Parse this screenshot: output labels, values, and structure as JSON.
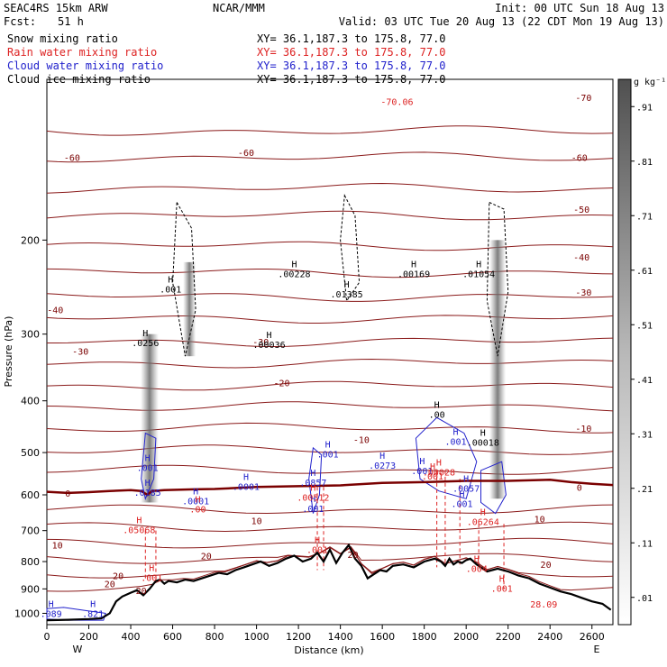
{
  "header": {
    "model": "SEAC4RS 15km ARW",
    "org": "NCAR/MMM",
    "init": "Init: 00 UTC Sun 18 Aug 13",
    "fcst_label": "Fcst:",
    "fcst_value": "51 h",
    "valid": "Valid: 03 UTC Tue 20 Aug 13 (22 CDT Mon 19 Aug 13)"
  },
  "legend": [
    {
      "name": "Snow mixing ratio",
      "xy": "XY=  36.1,187.3 to 175.8, 77.0",
      "color": "#000000"
    },
    {
      "name": "Rain water mixing ratio",
      "xy": "XY=  36.1,187.3 to 175.8, 77.0",
      "color": "#dd2222"
    },
    {
      "name": "Cloud water mixing ratio",
      "xy": "XY=  36.1,187.3 to 175.8, 77.0",
      "color": "#2222cc"
    },
    {
      "name": "Cloud ice mixing ratio",
      "xy": "XY=  36.1,187.3 to 175.8, 77.0",
      "color": "#000000"
    }
  ],
  "colorbar": {
    "unit": "g kg⁻¹",
    "ticks": [
      ".91",
      ".81",
      ".71",
      ".61",
      ".51",
      ".41",
      ".31",
      ".21",
      ".11",
      ".01"
    ]
  },
  "chart_data": {
    "type": "cross-section",
    "xlabel": "Distance (km)",
    "ylabel": "Pressure (hPa)",
    "xlim": [
      0,
      2700
    ],
    "ylim": [
      1050,
      100
    ],
    "y_log_scale": true,
    "x_ticks": [
      0,
      200,
      400,
      600,
      800,
      1000,
      1200,
      1400,
      1600,
      1800,
      2000,
      2200,
      2400,
      2600
    ],
    "y_ticks": [
      200,
      300,
      400,
      500,
      600,
      700,
      800,
      900,
      1000
    ],
    "x_end_labels": [
      "W",
      "E"
    ],
    "temperature_contours_degC": [
      -70,
      -60,
      -50,
      -40,
      -30,
      -20,
      -10,
      0,
      10,
      20
    ],
    "temperature_labels": [
      {
        "x": 120,
        "p": 140,
        "text": "-60"
      },
      {
        "x": 950,
        "p": 137,
        "text": "-60"
      },
      {
        "x": 2560,
        "p": 108,
        "text": "-70"
      },
      {
        "x": 2540,
        "p": 140,
        "text": "-60"
      },
      {
        "x": 2550,
        "p": 175,
        "text": "-50"
      },
      {
        "x": 2550,
        "p": 215,
        "text": "-40"
      },
      {
        "x": 2560,
        "p": 250,
        "text": "-30"
      },
      {
        "x": 40,
        "p": 270,
        "text": "-40"
      },
      {
        "x": 160,
        "p": 323,
        "text": "-30"
      },
      {
        "x": 1020,
        "p": 310,
        "text": "-30"
      },
      {
        "x": 1120,
        "p": 370,
        "text": "-20"
      },
      {
        "x": 2560,
        "p": 450,
        "text": "-10"
      },
      {
        "x": 1500,
        "p": 472,
        "text": "-10"
      },
      {
        "x": 100,
        "p": 595,
        "text": "0"
      },
      {
        "x": 2540,
        "p": 580,
        "text": "0"
      },
      {
        "x": 1000,
        "p": 670,
        "text": "10"
      },
      {
        "x": 2350,
        "p": 665,
        "text": "10"
      },
      {
        "x": 50,
        "p": 745,
        "text": "10"
      },
      {
        "x": 760,
        "p": 780,
        "text": "20"
      },
      {
        "x": 1460,
        "p": 775,
        "text": "20"
      },
      {
        "x": 2380,
        "p": 810,
        "text": "20"
      },
      {
        "x": 340,
        "p": 850,
        "text": "20"
      },
      {
        "x": 300,
        "p": 880,
        "text": "20"
      },
      {
        "x": 450,
        "p": 905,
        "text": "20"
      }
    ],
    "special_labels": [
      {
        "x": 1670,
        "p": 110,
        "text": "-70.06",
        "color": "#dd2222"
      },
      {
        "x": 2370,
        "p": 960,
        "text": "28.09",
        "color": "#dd2222"
      }
    ],
    "maxima": [
      {
        "x": 470,
        "p": 312,
        "label": ".0256",
        "color": "#000000"
      },
      {
        "x": 590,
        "p": 248,
        "label": ".001",
        "color": "#000000"
      },
      {
        "x": 1060,
        "p": 315,
        "label": ".00036",
        "color": "#000000"
      },
      {
        "x": 1180,
        "p": 232,
        "label": ".00228",
        "color": "#000000"
      },
      {
        "x": 1430,
        "p": 253,
        "label": ".01385",
        "color": "#000000"
      },
      {
        "x": 1750,
        "p": 232,
        "label": ".00169",
        "color": "#000000"
      },
      {
        "x": 2060,
        "p": 232,
        "label": ".01054",
        "color": "#000000"
      },
      {
        "x": 1860,
        "p": 425,
        "label": ".00",
        "color": "#000000"
      },
      {
        "x": 2080,
        "p": 480,
        "label": ".00018",
        "color": "#000000"
      },
      {
        "x": 480,
        "p": 535,
        "label": ".001",
        "color": "#2222cc"
      },
      {
        "x": 480,
        "p": 595,
        "label": ".0185",
        "color": "#2222cc"
      },
      {
        "x": 710,
        "p": 618,
        "label": ".0001",
        "color": "#2222cc"
      },
      {
        "x": 950,
        "p": 580,
        "label": ".0001",
        "color": "#2222cc"
      },
      {
        "x": 1270,
        "p": 570,
        "label": ".0857",
        "color": "#2222cc"
      },
      {
        "x": 1270,
        "p": 638,
        "label": ".001",
        "color": "#2222cc"
      },
      {
        "x": 1340,
        "p": 505,
        "label": ".001",
        "color": "#2222cc"
      },
      {
        "x": 1600,
        "p": 530,
        "label": ".0273",
        "color": "#2222cc"
      },
      {
        "x": 1790,
        "p": 542,
        "label": ".001",
        "color": "#2222cc"
      },
      {
        "x": 1950,
        "p": 478,
        "label": ".001",
        "color": "#2222cc"
      },
      {
        "x": 2000,
        "p": 585,
        "label": ".0057",
        "color": "#2222cc"
      },
      {
        "x": 1980,
        "p": 625,
        "label": ".001",
        "color": "#2222cc"
      },
      {
        "x": 20,
        "p": 1005,
        "label": ".089",
        "color": "#2222cc"
      },
      {
        "x": 220,
        "p": 1005,
        "label": ".821",
        "color": "#2222cc"
      },
      {
        "x": 720,
        "p": 640,
        "label": ".00",
        "color": "#dd2222"
      },
      {
        "x": 440,
        "p": 700,
        "label": ".05068",
        "color": "#dd2222"
      },
      {
        "x": 1270,
        "p": 608,
        "label": ".00512",
        "color": "#dd2222"
      },
      {
        "x": 1290,
        "p": 762,
        "label": ".001",
        "color": "#dd2222"
      },
      {
        "x": 1840,
        "p": 555,
        "label": ".001",
        "color": "#dd2222"
      },
      {
        "x": 1870,
        "p": 545,
        "label": ".00028",
        "color": "#dd2222"
      },
      {
        "x": 2080,
        "p": 675,
        "label": ".06264",
        "color": "#dd2222"
      },
      {
        "x": 2050,
        "p": 826,
        "label": ".004",
        "color": "#dd2222"
      },
      {
        "x": 2170,
        "p": 900,
        "label": ".001",
        "color": "#dd2222"
      },
      {
        "x": 500,
        "p": 860,
        "label": ".001",
        "color": "#dd2222"
      }
    ],
    "terrain": {
      "x": [
        0,
        100,
        200,
        260,
        300,
        330,
        360,
        400,
        430,
        460,
        490,
        520,
        540,
        560,
        580,
        620,
        660,
        700,
        740,
        780,
        820,
        860,
        900,
        940,
        980,
        1020,
        1060,
        1100,
        1140,
        1180,
        1220,
        1260,
        1290,
        1320,
        1350,
        1380,
        1410,
        1440,
        1470,
        1500,
        1530,
        1560,
        1590,
        1620,
        1650,
        1700,
        1750,
        1800,
        1850,
        1880,
        1900,
        1920,
        1940,
        1960,
        1980,
        2000,
        2020,
        2050,
        2100,
        2150,
        2200,
        2250,
        2300,
        2350,
        2400,
        2450,
        2500,
        2550,
        2600,
        2650,
        2690
      ],
      "p": [
        1030,
        1028,
        1025,
        1022,
        1000,
        950,
        930,
        915,
        905,
        925,
        900,
        870,
        865,
        880,
        870,
        875,
        865,
        870,
        860,
        850,
        840,
        845,
        830,
        820,
        810,
        800,
        815,
        805,
        790,
        780,
        800,
        790,
        770,
        800,
        760,
        805,
        770,
        745,
        790,
        815,
        860,
        845,
        830,
        835,
        815,
        810,
        820,
        800,
        790,
        800,
        815,
        790,
        810,
        800,
        805,
        795,
        790,
        810,
        835,
        825,
        835,
        850,
        860,
        880,
        895,
        910,
        920,
        935,
        950,
        960,
        985
      ]
    },
    "freezing_level": {
      "x": [
        0,
        100,
        200,
        300,
        400,
        450,
        480,
        500,
        560,
        700,
        800,
        1000,
        1200,
        1400,
        1600,
        1800,
        2000,
        2200,
        2400,
        2500,
        2600,
        2700
      ],
      "p": [
        592,
        595,
        593,
        590,
        588,
        590,
        600,
        590,
        588,
        586,
        585,
        580,
        578,
        576,
        570,
        568,
        565,
        565,
        562,
        568,
        572,
        575
      ]
    }
  }
}
